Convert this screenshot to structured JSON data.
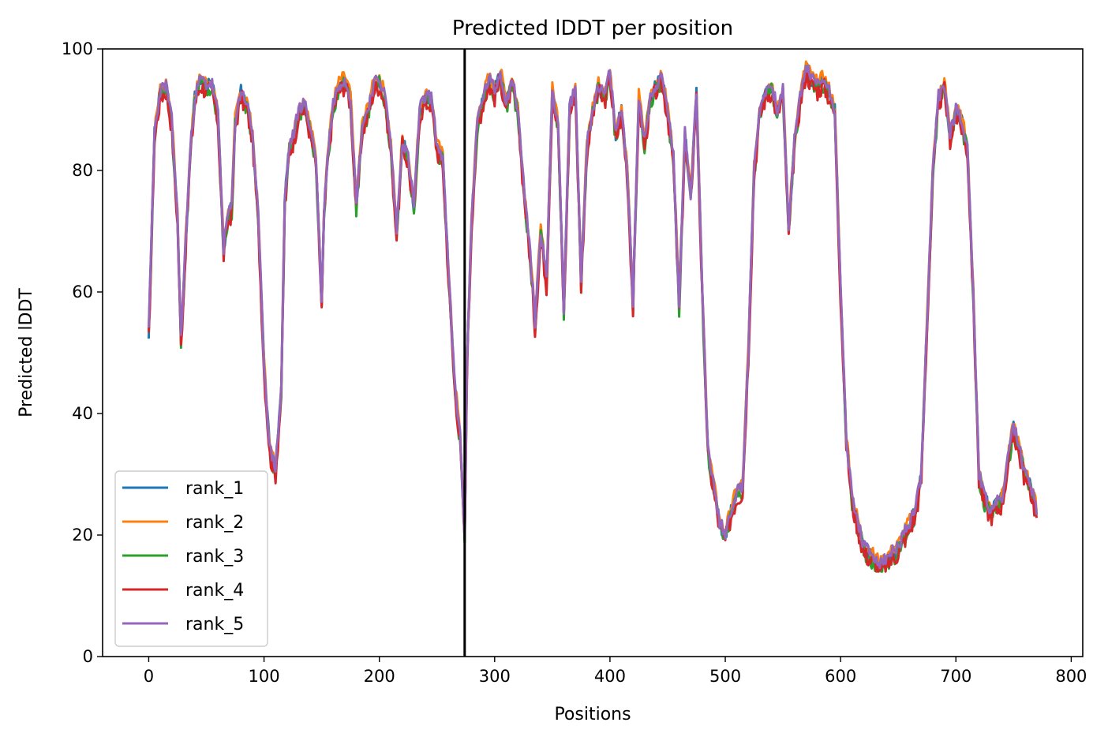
{
  "chart_data": {
    "type": "line",
    "title": "Predicted lDDT per position",
    "xlabel": "Positions",
    "ylabel": "Predicted lDDT",
    "xlim": [
      -40,
      810
    ],
    "ylim": [
      0,
      100
    ],
    "x_ticks": [
      0,
      100,
      200,
      300,
      400,
      500,
      600,
      700,
      800
    ],
    "y_ticks": [
      0,
      20,
      40,
      60,
      80,
      100
    ],
    "x_tick_labels": [
      "0",
      "100",
      "200",
      "300",
      "400",
      "500",
      "600",
      "700",
      "800"
    ],
    "y_tick_labels": [
      "0",
      "20",
      "40",
      "60",
      "80",
      "100"
    ],
    "grid": false,
    "legend_position": "lower-left",
    "vertical_line": {
      "x": 274,
      "color": "#000000"
    },
    "base_profile": {
      "x": [
        0,
        5,
        10,
        15,
        20,
        25,
        28,
        32,
        36,
        40,
        45,
        50,
        55,
        60,
        65,
        68,
        72,
        75,
        80,
        85,
        90,
        95,
        100,
        105,
        110,
        115,
        118,
        122,
        126,
        130,
        135,
        140,
        145,
        150,
        152,
        155,
        160,
        165,
        170,
        175,
        180,
        185,
        190,
        195,
        200,
        205,
        210,
        215,
        220,
        225,
        230,
        235,
        240,
        245,
        250,
        255,
        260,
        265,
        270,
        274,
        276,
        280,
        285,
        290,
        295,
        300,
        305,
        310,
        315,
        320,
        325,
        330,
        335,
        340,
        345,
        350,
        355,
        360,
        365,
        370,
        375,
        380,
        385,
        390,
        395,
        400,
        405,
        410,
        415,
        420,
        425,
        430,
        435,
        440,
        445,
        450,
        455,
        460,
        465,
        470,
        475,
        480,
        485,
        490,
        495,
        500,
        505,
        510,
        515,
        520,
        525,
        530,
        535,
        540,
        545,
        550,
        555,
        560,
        565,
        570,
        575,
        580,
        585,
        590,
        595,
        600,
        605,
        610,
        615,
        620,
        625,
        630,
        635,
        640,
        645,
        650,
        655,
        660,
        665,
        670,
        675,
        680,
        685,
        690,
        695,
        700,
        705,
        710,
        715,
        720,
        725,
        730,
        735,
        740,
        745,
        750,
        755,
        760,
        765,
        770
      ],
      "y": [
        53,
        86,
        93,
        94,
        88,
        72,
        52,
        68,
        83,
        92,
        95,
        94,
        94,
        89,
        67,
        72,
        74,
        88,
        93,
        91,
        86,
        72,
        48,
        34,
        31,
        44,
        75,
        84,
        86,
        90,
        91,
        87,
        82,
        58,
        73,
        82,
        91,
        94,
        95,
        92,
        74,
        87,
        90,
        94,
        95,
        92,
        84,
        70,
        85,
        82,
        74,
        90,
        92,
        92,
        84,
        82,
        63,
        46,
        36,
        20,
        48,
        72,
        88,
        92,
        95,
        93,
        96,
        91,
        95,
        90,
        78,
        68,
        55,
        70,
        62,
        93,
        88,
        57,
        90,
        94,
        62,
        84,
        90,
        94,
        92,
        96,
        86,
        90,
        80,
        58,
        92,
        85,
        92,
        94,
        95,
        90,
        82,
        58,
        86,
        76,
        93,
        60,
        34,
        28,
        22,
        20,
        24,
        27,
        28,
        50,
        80,
        90,
        93,
        94,
        90,
        93,
        70,
        85,
        92,
        97,
        95,
        94,
        95,
        93,
        90,
        60,
        36,
        26,
        22,
        18,
        17,
        16,
        15,
        16,
        17,
        18,
        20,
        22,
        24,
        30,
        55,
        80,
        92,
        94,
        86,
        90,
        88,
        84,
        60,
        30,
        26,
        24,
        25,
        26,
        32,
        38,
        34,
        30,
        28,
        24
      ]
    },
    "series": [
      {
        "name": "rank_1",
        "color": "#1f77b4",
        "offset": 0.0,
        "amp": 1.2,
        "seed": 3
      },
      {
        "name": "rank_2",
        "color": "#ff7f0e",
        "offset": 0.6,
        "amp": 1.0,
        "seed": 7
      },
      {
        "name": "rank_3",
        "color": "#2ca02c",
        "offset": -0.8,
        "amp": 1.4,
        "seed": 11
      },
      {
        "name": "rank_4",
        "color": "#d62728",
        "offset": -1.0,
        "amp": 1.6,
        "seed": 17
      },
      {
        "name": "rank_5",
        "color": "#9467bd",
        "offset": 0.2,
        "amp": 1.1,
        "seed": 23
      }
    ]
  }
}
